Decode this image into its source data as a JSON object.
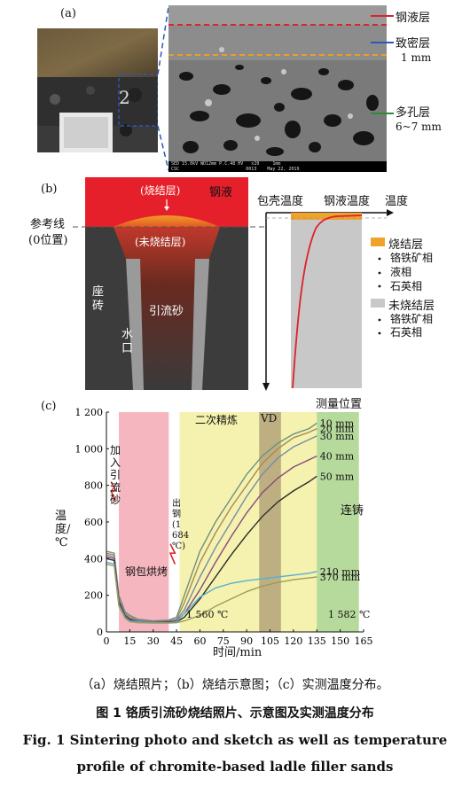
{
  "panel_a": {
    "label": "(a)",
    "layers": [
      {
        "name": "钢液层",
        "value": "",
        "color": "#d7262b"
      },
      {
        "name": "致密层",
        "value": "1 mm",
        "color": "#2f57b5"
      },
      {
        "name": "多孔层",
        "value": "6~7 mm",
        "color": "#2e8b3a"
      }
    ],
    "sem_info": "SED 15.0kV WD12mm P.C.48 HV   x20     1mm",
    "sem_info2": "CSC                         0013    May 22, 2019"
  },
  "panel_b": {
    "label": "(b)",
    "sintered_layer": "(烧结层)",
    "molten_steel": "钢液",
    "unsintered_layer": "(未烧结层)",
    "reference_line": "参考线",
    "zero_position": "(0位置)",
    "seat_brick": "座砖",
    "nozzle": "水口",
    "filler_sand": "引流砂",
    "axis_shell_temp": "包壳温度",
    "axis_steel_temp": "钢液温度",
    "axis_temp": "温度",
    "legend": {
      "sintered": {
        "title": "烧结层",
        "items": [
          "铬铁矿相",
          "液相",
          "石英相"
        ],
        "color": "#f0a32a"
      },
      "unsintered": {
        "title": "未烧结层",
        "items": [
          "铬铁矿相",
          "石英相"
        ],
        "color": "#c8c8c8"
      }
    }
  },
  "panel_c": {
    "label": "(c)",
    "ylabel": "温度/℃",
    "xlabel": "时间/min",
    "annotations": {
      "add_sand": "加入引流砂",
      "ladle_baking": "钢包烘烤",
      "tapping": "出钢(1 684 ℃)",
      "secondary_refining": "二次精炼",
      "vd": "VD",
      "continuous_casting": "连铸",
      "measure_position": "测量位置",
      "temp_1560": "1 560 ℃",
      "temp_1582": "1 582 ℃"
    }
  },
  "chart_data": {
    "type": "line",
    "xlabel": "时间/min",
    "ylabel": "温度/℃",
    "xlim": [
      0,
      165
    ],
    "ylim": [
      0,
      1200
    ],
    "xticks": [
      "0",
      "15",
      "30",
      "45",
      "60",
      "75",
      "90",
      "105",
      "120",
      "135",
      "150",
      "165"
    ],
    "yticks": [
      "0",
      "200",
      "400",
      "600",
      "800",
      "1 000",
      "1 200"
    ],
    "regions": [
      {
        "name": "钢包烘烤",
        "x": [
          8,
          40
        ],
        "color": "#f3a9b4"
      },
      {
        "name": "二次精炼",
        "x": [
          47,
          135
        ],
        "color": "#f2f0a0"
      },
      {
        "name": "VD",
        "x": [
          98,
          112
        ],
        "color": "#b3a37a"
      },
      {
        "name": "连铸",
        "x": [
          135,
          162
        ],
        "color": "#a9d28b"
      }
    ],
    "series": [
      {
        "name": "10 mm",
        "color": "#6f8f7f",
        "x": [
          0,
          5,
          8,
          12,
          15,
          20,
          30,
          40,
          45,
          50,
          60,
          70,
          80,
          90,
          100,
          110,
          120,
          130,
          135
        ],
        "y": [
          440,
          430,
          200,
          110,
          90,
          70,
          60,
          65,
          80,
          200,
          440,
          600,
          730,
          860,
          960,
          1030,
          1080,
          1110,
          1140
        ]
      },
      {
        "name": "20 mm",
        "color": "#a88a58",
        "x": [
          0,
          5,
          8,
          12,
          15,
          20,
          30,
          40,
          45,
          50,
          60,
          70,
          80,
          90,
          100,
          110,
          120,
          130,
          135
        ],
        "y": [
          430,
          420,
          190,
          100,
          80,
          65,
          55,
          60,
          70,
          160,
          380,
          540,
          680,
          800,
          920,
          1000,
          1060,
          1090,
          1110
        ]
      },
      {
        "name": "30 mm",
        "color": "#7b8aa6",
        "x": [
          0,
          5,
          8,
          12,
          15,
          20,
          30,
          40,
          45,
          50,
          60,
          70,
          80,
          90,
          100,
          110,
          120,
          130,
          135
        ],
        "y": [
          420,
          410,
          180,
          95,
          75,
          60,
          55,
          58,
          65,
          120,
          300,
          460,
          600,
          740,
          860,
          950,
          1010,
          1050,
          1070
        ]
      },
      {
        "name": "40 mm",
        "color": "#8a4a7a",
        "x": [
          0,
          5,
          8,
          12,
          15,
          20,
          30,
          40,
          45,
          50,
          60,
          70,
          80,
          90,
          100,
          110,
          120,
          130,
          135
        ],
        "y": [
          410,
          400,
          170,
          90,
          70,
          58,
          52,
          55,
          60,
          100,
          230,
          380,
          520,
          650,
          760,
          840,
          900,
          940,
          960
        ]
      },
      {
        "name": "50 mm",
        "color": "#2b2b2b",
        "x": [
          0,
          5,
          8,
          12,
          15,
          20,
          30,
          40,
          45,
          50,
          60,
          70,
          80,
          90,
          100,
          110,
          120,
          130,
          135
        ],
        "y": [
          400,
          390,
          160,
          85,
          65,
          55,
          50,
          52,
          55,
          80,
          180,
          300,
          420,
          530,
          630,
          710,
          770,
          820,
          850
        ]
      },
      {
        "name": "210 mm",
        "color": "#5ab0d3",
        "x": [
          0,
          5,
          8,
          12,
          15,
          20,
          30,
          40,
          45,
          50,
          60,
          70,
          80,
          90,
          100,
          110,
          120,
          130,
          135
        ],
        "y": [
          380,
          370,
          150,
          80,
          60,
          55,
          50,
          50,
          55,
          100,
          190,
          240,
          265,
          280,
          290,
          300,
          310,
          320,
          330
        ]
      },
      {
        "name": "370 mm",
        "color": "#9c9c5c",
        "x": [
          0,
          5,
          8,
          12,
          15,
          20,
          30,
          40,
          45,
          50,
          60,
          70,
          80,
          90,
          100,
          110,
          120,
          130,
          135
        ],
        "y": [
          370,
          360,
          140,
          75,
          55,
          50,
          48,
          48,
          50,
          60,
          90,
          140,
          180,
          220,
          250,
          270,
          285,
          295,
          300
        ]
      }
    ]
  },
  "caption": {
    "sub": "（a）烧结照片；（b）烧结示意图；（c）实测温度分布。",
    "title_cn": "图 1    铬质引流砂烧结照片、示意图及实测温度分布",
    "title_en_1": "Fig. 1    Sintering photo and sketch as well as temperature",
    "title_en_2": "profile of chromite-based ladle filler sands"
  }
}
